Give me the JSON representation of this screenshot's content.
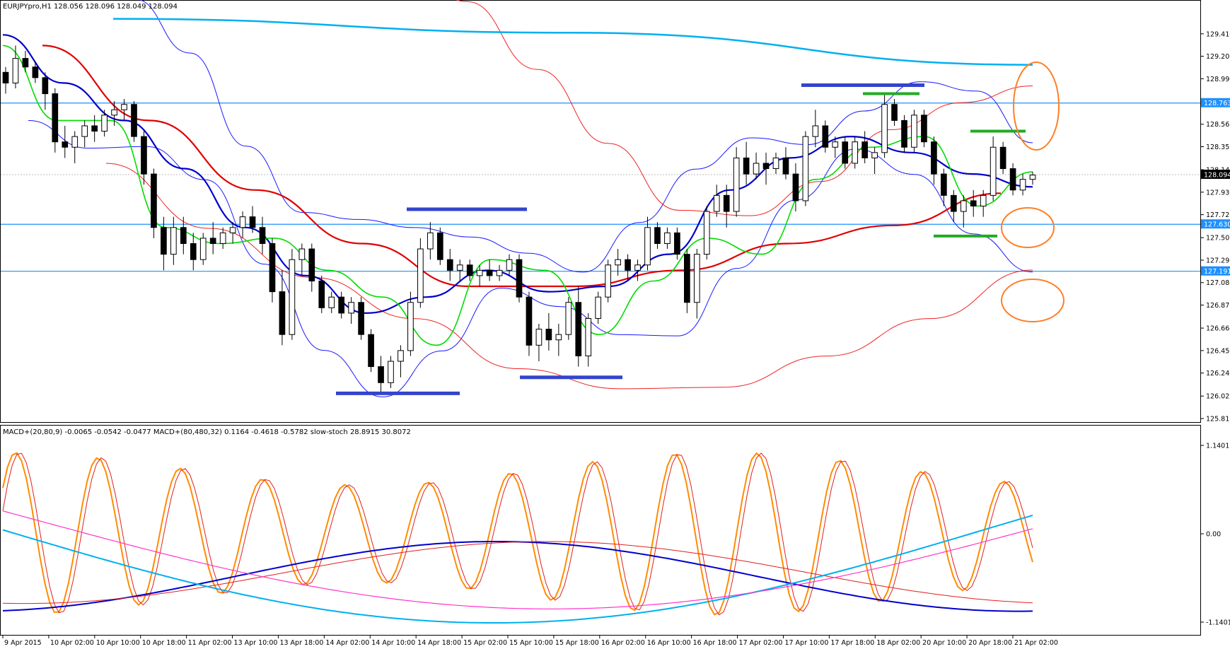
{
  "header": {
    "symbol_line": "EURJPYpro,H1  128.056 128.096 128.049 128.094",
    "indicator_line": "MACD+(20,80,9) -0.0065 -0.0542 -0.0477   MACD+(80,480,32) 0.1164 -0.4618 -0.5782   slow-stoch 28.8915 30.8072"
  },
  "colors": {
    "ma_blue": "#0000cc",
    "ma_red": "#e00000",
    "ma_green": "#00dd00",
    "ma_cyan": "#00b0f0",
    "band_blue": "#1a1aff",
    "band_red": "#ee2222",
    "level_line": "#1e90ff",
    "ellipse": "#ff7f27",
    "marker_blue": "#3344cc",
    "marker_green": "#22aa22",
    "stoch_orange": "#ff8c00",
    "macd_pink": "#ff33cc"
  },
  "chart_data": [
    {
      "type": "candlestick",
      "ylim": [
        125.815,
        129.62
      ],
      "y_ticks": [
        "129.410",
        "129.200",
        "128.990",
        "128.780",
        "128.565",
        "128.355",
        "128.140",
        "127.930",
        "127.720",
        "127.505",
        "127.295",
        "127.085",
        "126.875",
        "126.660",
        "126.450",
        "126.240",
        "126.025",
        "125.815"
      ],
      "x_ticks": [
        "9 Apr 2015",
        "10 Apr 02:00",
        "10 Apr 10:00",
        "10 Apr 18:00",
        "11 Apr 02:00",
        "13 Apr 10:00",
        "13 Apr 18:00",
        "14 Apr 02:00",
        "14 Apr 10:00",
        "14 Apr 18:00",
        "15 Apr 02:00",
        "15 Apr 10:00",
        "15 Apr 18:00",
        "16 Apr 02:00",
        "16 Apr 10:00",
        "16 Apr 18:00",
        "17 Apr 02:00",
        "17 Apr 10:00",
        "17 Apr 18:00",
        "18 Apr 02:00",
        "20 Apr 10:00",
        "20 Apr 18:00",
        "21 Apr 02:00"
      ],
      "price_levels": [
        {
          "value": 128.763,
          "label": "128.763"
        },
        {
          "value": 127.63,
          "label": "127.630"
        },
        {
          "value": 127.191,
          "label": "127.191"
        }
      ],
      "current_price": {
        "value": 128.094,
        "label": "128.094"
      },
      "candles": [
        [
          129.05,
          129.1,
          128.85,
          128.95
        ],
        [
          128.95,
          129.3,
          128.9,
          129.18
        ],
        [
          129.18,
          129.25,
          129.05,
          129.1
        ],
        [
          129.1,
          129.15,
          128.95,
          129.0
        ],
        [
          129.0,
          129.05,
          128.7,
          128.85
        ],
        [
          128.85,
          128.9,
          128.3,
          128.4
        ],
        [
          128.4,
          128.55,
          128.25,
          128.35
        ],
        [
          128.35,
          128.5,
          128.2,
          128.45
        ],
        [
          128.45,
          128.6,
          128.35,
          128.55
        ],
        [
          128.55,
          128.65,
          128.4,
          128.5
        ],
        [
          128.5,
          128.7,
          128.45,
          128.65
        ],
        [
          128.65,
          128.78,
          128.55,
          128.7
        ],
        [
          128.7,
          128.8,
          128.6,
          128.75
        ],
        [
          128.75,
          128.78,
          128.4,
          128.45
        ],
        [
          128.45,
          128.5,
          128.0,
          128.1
        ],
        [
          128.1,
          128.15,
          127.5,
          127.6
        ],
        [
          127.6,
          127.7,
          127.2,
          127.35
        ],
        [
          127.35,
          127.7,
          127.25,
          127.6
        ],
        [
          127.6,
          127.7,
          127.35,
          127.45
        ],
        [
          127.45,
          127.55,
          127.2,
          127.3
        ],
        [
          127.3,
          127.55,
          127.25,
          127.5
        ],
        [
          127.5,
          127.65,
          127.35,
          127.45
        ],
        [
          127.45,
          127.6,
          127.4,
          127.55
        ],
        [
          127.55,
          127.65,
          127.45,
          127.6
        ],
        [
          127.6,
          127.75,
          127.5,
          127.7
        ],
        [
          127.7,
          127.8,
          127.55,
          127.6
        ],
        [
          127.6,
          127.7,
          127.35,
          127.45
        ],
        [
          127.45,
          127.5,
          126.9,
          127.0
        ],
        [
          127.0,
          127.2,
          126.5,
          126.6
        ],
        [
          126.6,
          127.4,
          126.55,
          127.3
        ],
        [
          127.3,
          127.45,
          127.15,
          127.4
        ],
        [
          127.4,
          127.45,
          127.0,
          127.1
        ],
        [
          127.1,
          127.15,
          126.8,
          126.85
        ],
        [
          126.85,
          127.0,
          126.8,
          126.95
        ],
        [
          126.95,
          127.0,
          126.75,
          126.8
        ],
        [
          126.8,
          126.95,
          126.7,
          126.9
        ],
        [
          126.9,
          126.95,
          126.55,
          126.6
        ],
        [
          126.6,
          126.65,
          126.25,
          126.3
        ],
        [
          126.3,
          126.4,
          126.05,
          126.15
        ],
        [
          126.15,
          126.4,
          126.1,
          126.35
        ],
        [
          126.35,
          126.5,
          126.2,
          126.45
        ],
        [
          126.45,
          127.0,
          126.4,
          126.9
        ],
        [
          126.9,
          127.5,
          126.85,
          127.4
        ],
        [
          127.4,
          127.65,
          127.3,
          127.55
        ],
        [
          127.55,
          127.6,
          127.25,
          127.3
        ],
        [
          127.3,
          127.4,
          127.1,
          127.2
        ],
        [
          127.2,
          127.3,
          127.1,
          127.25
        ],
        [
          127.25,
          127.3,
          127.1,
          127.15
        ],
        [
          127.15,
          127.25,
          127.05,
          127.2
        ],
        [
          127.2,
          127.3,
          127.1,
          127.15
        ],
        [
          127.15,
          127.25,
          127.1,
          127.2
        ],
        [
          127.2,
          127.35,
          127.15,
          127.3
        ],
        [
          127.3,
          127.35,
          126.9,
          126.95
        ],
        [
          126.95,
          127.0,
          126.4,
          126.5
        ],
        [
          126.5,
          126.7,
          126.35,
          126.65
        ],
        [
          126.65,
          126.8,
          126.45,
          126.55
        ],
        [
          126.55,
          126.7,
          126.4,
          126.6
        ],
        [
          126.6,
          126.95,
          126.55,
          126.9
        ],
        [
          126.9,
          127.05,
          126.3,
          126.4
        ],
        [
          126.4,
          126.8,
          126.3,
          126.75
        ],
        [
          126.75,
          127.0,
          126.7,
          126.95
        ],
        [
          126.95,
          127.3,
          126.9,
          127.25
        ],
        [
          127.25,
          127.4,
          127.15,
          127.3
        ],
        [
          127.3,
          127.35,
          127.1,
          127.2
        ],
        [
          127.2,
          127.3,
          127.1,
          127.25
        ],
        [
          127.25,
          127.7,
          127.2,
          127.6
        ],
        [
          127.6,
          127.65,
          127.4,
          127.45
        ],
        [
          127.45,
          127.6,
          127.4,
          127.55
        ],
        [
          127.55,
          127.6,
          127.3,
          127.35
        ],
        [
          127.35,
          127.4,
          126.8,
          126.9
        ],
        [
          126.9,
          127.4,
          126.75,
          127.35
        ],
        [
          127.35,
          127.8,
          127.3,
          127.75
        ],
        [
          127.75,
          128.0,
          127.7,
          127.9
        ],
        [
          127.9,
          128.0,
          127.6,
          127.75
        ],
        [
          127.75,
          128.35,
          127.7,
          128.25
        ],
        [
          128.25,
          128.4,
          128.0,
          128.1
        ],
        [
          128.1,
          128.3,
          128.05,
          128.2
        ],
        [
          128.2,
          128.3,
          128.0,
          128.15
        ],
        [
          128.15,
          128.3,
          128.1,
          128.25
        ],
        [
          128.25,
          128.35,
          128.05,
          128.1
        ],
        [
          128.1,
          128.2,
          127.75,
          127.85
        ],
        [
          127.85,
          128.5,
          127.8,
          128.45
        ],
        [
          128.45,
          128.7,
          128.35,
          128.55
        ],
        [
          128.55,
          128.6,
          128.3,
          128.35
        ],
        [
          128.35,
          128.45,
          128.25,
          128.4
        ],
        [
          128.4,
          128.45,
          128.15,
          128.2
        ],
        [
          128.2,
          128.45,
          128.15,
          128.4
        ],
        [
          128.4,
          128.5,
          128.2,
          128.25
        ],
        [
          128.25,
          128.35,
          128.1,
          128.3
        ],
        [
          128.3,
          128.85,
          128.25,
          128.75
        ],
        [
          128.75,
          128.8,
          128.55,
          128.6
        ],
        [
          128.6,
          128.65,
          128.3,
          128.35
        ],
        [
          128.35,
          128.7,
          128.3,
          128.65
        ],
        [
          128.65,
          128.7,
          128.35,
          128.4
        ],
        [
          128.4,
          128.45,
          128.0,
          128.1
        ],
        [
          128.1,
          128.15,
          127.8,
          127.9
        ],
        [
          127.9,
          127.95,
          127.65,
          127.75
        ],
        [
          127.75,
          127.9,
          127.6,
          127.85
        ],
        [
          127.85,
          127.95,
          127.7,
          127.8
        ],
        [
          127.8,
          127.95,
          127.7,
          127.9
        ],
        [
          127.9,
          128.45,
          127.85,
          128.35
        ],
        [
          128.35,
          128.4,
          128.1,
          128.15
        ],
        [
          128.15,
          128.2,
          127.9,
          127.95
        ],
        [
          127.95,
          128.1,
          127.9,
          128.05
        ],
        [
          128.05,
          128.12,
          128.0,
          128.09
        ]
      ],
      "moving_averages": {
        "cyan_slow": [
          129.55,
          129.42,
          129.12
        ],
        "red_ma": [
          129.3,
          128.6,
          127.95,
          127.45,
          127.05,
          127.05,
          127.2,
          127.45,
          127.62,
          127.92
        ],
        "blue_ma": [
          129.4,
          128.95,
          128.6,
          128.15,
          127.6,
          127.15,
          126.8,
          126.95,
          127.2,
          127.0,
          127.05,
          127.35,
          127.95,
          128.25,
          128.45,
          128.3,
          128.1,
          127.98
        ],
        "green_ma": [
          129.3,
          128.6,
          128.6,
          127.6,
          127.45,
          127.5,
          127.2,
          126.95,
          126.5,
          127.3,
          127.2,
          126.6,
          127.1,
          127.5,
          127.35,
          128.05,
          128.35,
          128.45,
          127.8,
          128.12
        ]
      }
    },
    {
      "type": "line",
      "y_ticks": [
        "1.1401",
        "0.00",
        "-1.1401"
      ],
      "ylim": [
        -1.25,
        1.25
      ]
    }
  ]
}
